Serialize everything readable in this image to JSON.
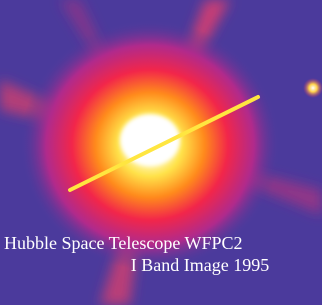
{
  "caption": {
    "line1": "Hubble Space Telescope WFPC2",
    "line2": "I Band Image 1995"
  }
}
